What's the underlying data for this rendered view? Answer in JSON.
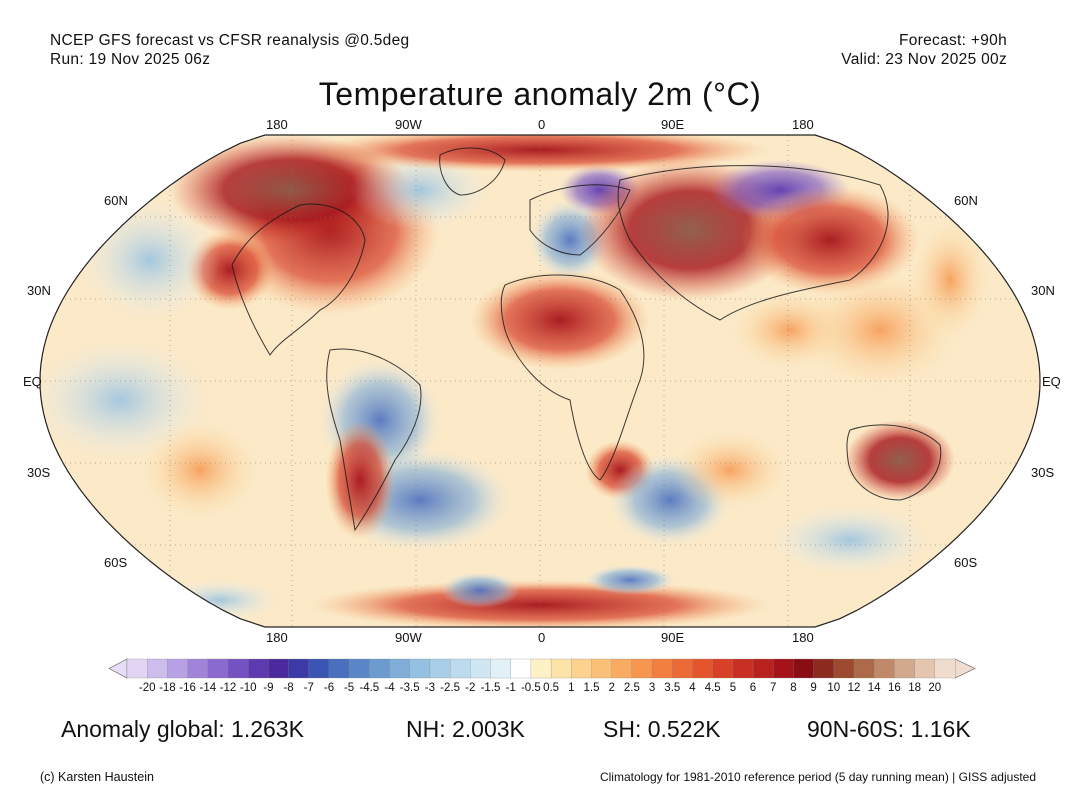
{
  "header": {
    "line1_left": "NCEP GFS forecast vs CFSR reanalysis @0.5deg",
    "line2_left": "Run: 19 Nov 2025 06z",
    "line1_right": "Forecast: +90h",
    "line2_right": "Valid: 23 Nov 2025 00z"
  },
  "title": "Temperature anomaly 2m (°C)",
  "map": {
    "lon_ticks_top": [
      "180",
      "90W",
      "0",
      "90E",
      "180"
    ],
    "lon_ticks_bottom": [
      "180",
      "90W",
      "0",
      "90E",
      "180"
    ],
    "lat_ticks_left": [
      "60N",
      "30N",
      "EQ",
      "30S",
      "60S"
    ],
    "lat_ticks_right": [
      "60N",
      "30N",
      "EQ",
      "30S",
      "60S"
    ]
  },
  "colorbar": {
    "labels": [
      "-20",
      "-18",
      "-16",
      "-14",
      "-12",
      "-10",
      "-9",
      "-8",
      "-7",
      "-6",
      "-5",
      "-4.5",
      "-4",
      "-3.5",
      "-3",
      "-2.5",
      "-2",
      "-1.5",
      "-1",
      "-0.5",
      "0.5",
      "1",
      "1.5",
      "2",
      "2.5",
      "3",
      "3.5",
      "4",
      "4.5",
      "5",
      "6",
      "7",
      "8",
      "9",
      "10",
      "12",
      "14",
      "16",
      "18",
      "20"
    ],
    "colors": [
      "#e2d5f3",
      "#cdbdec",
      "#b7a0e4",
      "#a184da",
      "#8b6ad0",
      "#7552c2",
      "#5e3ab0",
      "#4a2a9c",
      "#3b3aa6",
      "#3b55b3",
      "#4a6fbf",
      "#5a86c8",
      "#6c9bd0",
      "#80aed9",
      "#94c0e1",
      "#a9cfe8",
      "#bcdcee",
      "#cfe7f3",
      "#e2f1f8",
      "#ffffff",
      "#fdf1c6",
      "#fde3a8",
      "#fcd28e",
      "#fbc077",
      "#f9ab62",
      "#f6964f",
      "#f27f40",
      "#ec6a35",
      "#e4552d",
      "#d84128",
      "#c93023",
      "#b8211e",
      "#a5131a",
      "#8a0c15",
      "#8c2a1e",
      "#9c4a30",
      "#ad6a4a",
      "#c08a6a",
      "#d2a98c",
      "#e4c6ae",
      "#f0dccd"
    ],
    "under_color": "#e8ddf6",
    "over_color": "#f1ddd0"
  },
  "stats": {
    "global": "Anomaly global: 1.263K",
    "nh": "NH: 2.003K",
    "sh": "SH: 0.522K",
    "band": "90N-60S: 1.16K"
  },
  "footer": {
    "left": "(c) Karsten Haustein",
    "right": "Climatology for 1981-2010 reference period (5 day running mean) | GISS adjusted"
  }
}
